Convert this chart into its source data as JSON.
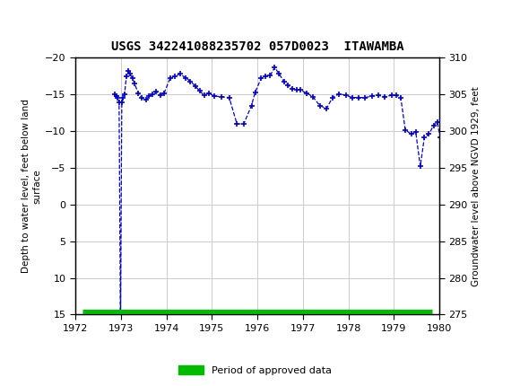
{
  "title": "USGS 342241088235702 057D0023  ITAWAMBA",
  "ylabel_left": "Depth to water level, feet below land\nsurface",
  "ylabel_right": "Groundwater level above NGVD 1929, feet",
  "xlim": [
    1972,
    1980
  ],
  "ylim_left": [
    15,
    -20
  ],
  "ylim_right": [
    275,
    310
  ],
  "yticks_left": [
    15,
    10,
    5,
    0,
    -5,
    -10,
    -15,
    -20
  ],
  "yticks_right": [
    275,
    280,
    285,
    290,
    295,
    300,
    305,
    310
  ],
  "xticks": [
    1972,
    1973,
    1974,
    1975,
    1976,
    1977,
    1978,
    1979,
    1980
  ],
  "grid_color": "#cccccc",
  "line_color": "#0000cc",
  "approved_bar_color": "#00bb00",
  "header_color": "#006633",
  "background_color": "#ffffff",
  "data_x": [
    1972.87,
    1972.9,
    1972.93,
    1972.96,
    1972.99,
    1973.02,
    1973.05,
    1973.08,
    1973.12,
    1973.16,
    1973.2,
    1973.25,
    1973.3,
    1973.38,
    1973.46,
    1973.55,
    1973.62,
    1973.7,
    1973.78,
    1973.87,
    1973.95,
    1974.08,
    1974.18,
    1974.3,
    1974.42,
    1974.53,
    1974.63,
    1974.73,
    1974.83,
    1974.93,
    1975.05,
    1975.2,
    1975.38,
    1975.55,
    1975.7,
    1975.87,
    1975.95,
    1976.08,
    1976.18,
    1976.28,
    1976.38,
    1976.48,
    1976.58,
    1976.67,
    1976.77,
    1976.87,
    1976.95,
    1977.08,
    1977.22,
    1977.37,
    1977.52,
    1977.65,
    1977.8,
    1977.95,
    1978.08,
    1978.22,
    1978.37,
    1978.52,
    1978.65,
    1978.8,
    1978.95,
    1979.05,
    1979.15,
    1979.25,
    1979.38,
    1979.48,
    1979.58,
    1979.67,
    1979.77,
    1979.87,
    1979.95,
    1980.02
  ],
  "data_y": [
    -15.0,
    -14.8,
    -14.5,
    -14.0,
    15.0,
    -14.0,
    -14.5,
    -15.0,
    -17.5,
    -18.2,
    -17.8,
    -17.3,
    -16.5,
    -15.2,
    -14.5,
    -14.3,
    -14.8,
    -15.1,
    -15.4,
    -14.9,
    -15.2,
    -17.2,
    -17.5,
    -17.8,
    -17.3,
    -16.8,
    -16.2,
    -15.5,
    -14.9,
    -15.2,
    -14.8,
    -14.7,
    -14.6,
    -11.0,
    -11.0,
    -13.5,
    -15.3,
    -17.2,
    -17.5,
    -17.6,
    -18.7,
    -17.8,
    -16.8,
    -16.3,
    -15.8,
    -15.7,
    -15.6,
    -15.2,
    -14.7,
    -13.5,
    -13.1,
    -14.6,
    -15.1,
    -14.9,
    -14.6,
    -14.6,
    -14.6,
    -14.8,
    -14.9,
    -14.7,
    -14.9,
    -14.9,
    -14.6,
    -10.2,
    -9.6,
    -9.9,
    -5.2,
    -9.2,
    -9.6,
    -10.8,
    -11.2,
    -9.2
  ]
}
